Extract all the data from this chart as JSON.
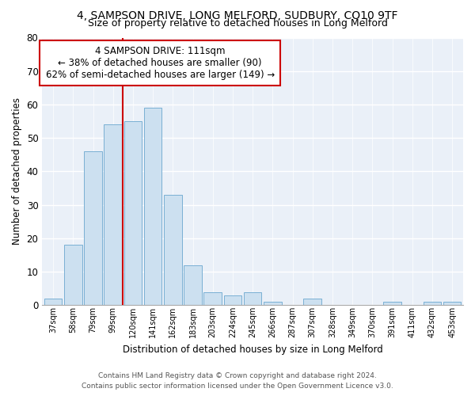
{
  "title": "4, SAMPSON DRIVE, LONG MELFORD, SUDBURY, CO10 9TF",
  "subtitle": "Size of property relative to detached houses in Long Melford",
  "xlabel": "Distribution of detached houses by size in Long Melford",
  "ylabel": "Number of detached properties",
  "bar_labels": [
    "37sqm",
    "58sqm",
    "79sqm",
    "99sqm",
    "120sqm",
    "141sqm",
    "162sqm",
    "183sqm",
    "203sqm",
    "224sqm",
    "245sqm",
    "266sqm",
    "287sqm",
    "307sqm",
    "328sqm",
    "349sqm",
    "370sqm",
    "391sqm",
    "411sqm",
    "432sqm",
    "453sqm"
  ],
  "bar_values": [
    2,
    18,
    46,
    54,
    55,
    59,
    33,
    12,
    4,
    3,
    4,
    1,
    0,
    2,
    0,
    0,
    0,
    1,
    0,
    1,
    1
  ],
  "bar_color": "#cce0f0",
  "bar_edge_color": "#7ab0d4",
  "reference_line_x": 3.5,
  "reference_line_color": "#cc0000",
  "ylim": [
    0,
    80
  ],
  "yticks": [
    0,
    10,
    20,
    30,
    40,
    50,
    60,
    70,
    80
  ],
  "annotation_title": "4 SAMPSON DRIVE: 111sqm",
  "annotation_line1": "← 38% of detached houses are smaller (90)",
  "annotation_line2": "62% of semi-detached houses are larger (149) →",
  "annotation_box_color": "#ffffff",
  "annotation_box_edge_color": "#cc0000",
  "footer_line1": "Contains HM Land Registry data © Crown copyright and database right 2024.",
  "footer_line2": "Contains public sector information licensed under the Open Government Licence v3.0.",
  "background_color": "#eaf0f8"
}
